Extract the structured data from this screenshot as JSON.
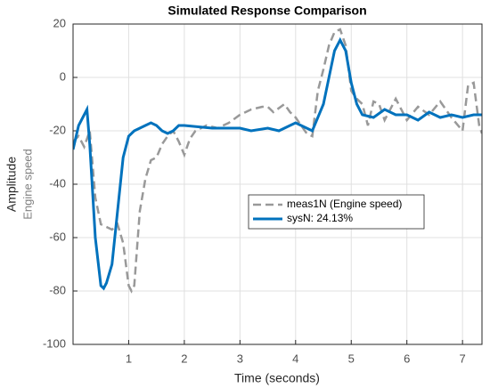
{
  "chart_data": {
    "type": "line",
    "title": "Simulated Response Comparison",
    "xlabel": "Time (seconds)",
    "ylabel": "Amplitude",
    "ylabel_sub": "Engine speed",
    "xlim": [
      0,
      7.35
    ],
    "ylim": [
      -100,
      20
    ],
    "xticks": [
      1,
      2,
      3,
      4,
      5,
      6,
      7
    ],
    "yticks": [
      -100,
      -80,
      -60,
      -40,
      -20,
      0,
      20
    ],
    "grid": true,
    "series": [
      {
        "name": "meas1N (Engine speed)",
        "color": "#999999",
        "dash": true,
        "x": [
          0,
          0.1,
          0.2,
          0.3,
          0.4,
          0.5,
          0.6,
          0.7,
          0.8,
          0.9,
          1.0,
          1.05,
          1.1,
          1.2,
          1.3,
          1.4,
          1.5,
          1.6,
          1.7,
          1.8,
          1.9,
          2.0,
          2.1,
          2.2,
          2.4,
          2.6,
          2.8,
          3.0,
          3.2,
          3.4,
          3.5,
          3.6,
          3.8,
          3.9,
          4.0,
          4.1,
          4.2,
          4.3,
          4.4,
          4.5,
          4.6,
          4.7,
          4.8,
          4.9,
          5.0,
          5.1,
          5.2,
          5.3,
          5.4,
          5.5,
          5.6,
          5.8,
          6.0,
          6.2,
          6.4,
          6.6,
          6.8,
          7.0,
          7.1,
          7.2,
          7.3,
          7.35
        ],
        "values": [
          -24,
          -22,
          -26,
          -20,
          -45,
          -55,
          -56,
          -57,
          -55,
          -62,
          -78,
          -80,
          -78,
          -50,
          -38,
          -31,
          -30,
          -25,
          -22,
          -20,
          -24,
          -29,
          -23,
          -20,
          -18,
          -19,
          -17,
          -14,
          -12,
          -11,
          -11,
          -13,
          -10,
          -13,
          -15,
          -18,
          -21,
          -22,
          -5,
          3,
          12,
          17,
          18,
          12,
          -5,
          -8,
          -10,
          -18,
          -9,
          -10,
          -16,
          -8,
          -16,
          -11,
          -14,
          -9,
          -15,
          -20,
          -3,
          -2,
          -18,
          -21
        ]
      },
      {
        "name": "sysN: 24.13%",
        "color": "#0072bd",
        "dash": false,
        "x": [
          0,
          0.1,
          0.2,
          0.25,
          0.3,
          0.4,
          0.5,
          0.55,
          0.6,
          0.7,
          0.8,
          0.9,
          1.0,
          1.1,
          1.2,
          1.3,
          1.4,
          1.5,
          1.6,
          1.7,
          1.8,
          1.9,
          2.0,
          2.5,
          3.0,
          3.2,
          3.5,
          3.7,
          3.9,
          4.0,
          4.2,
          4.3,
          4.5,
          4.6,
          4.7,
          4.8,
          4.9,
          5.0,
          5.1,
          5.2,
          5.4,
          5.6,
          5.8,
          6.0,
          6.2,
          6.4,
          6.6,
          6.8,
          7.0,
          7.2,
          7.35
        ],
        "values": [
          -27,
          -18,
          -14,
          -12,
          -25,
          -60,
          -78,
          -79,
          -77,
          -70,
          -50,
          -30,
          -22,
          -20,
          -19,
          -18,
          -17,
          -18,
          -20,
          -21,
          -20,
          -18,
          -18,
          -19,
          -19,
          -20,
          -19,
          -20,
          -18,
          -17,
          -19,
          -20,
          -10,
          0,
          10,
          14,
          10,
          -2,
          -10,
          -14,
          -15,
          -12,
          -14,
          -14,
          -16,
          -13,
          -15,
          -14,
          -15,
          -14,
          -14
        ]
      }
    ]
  }
}
